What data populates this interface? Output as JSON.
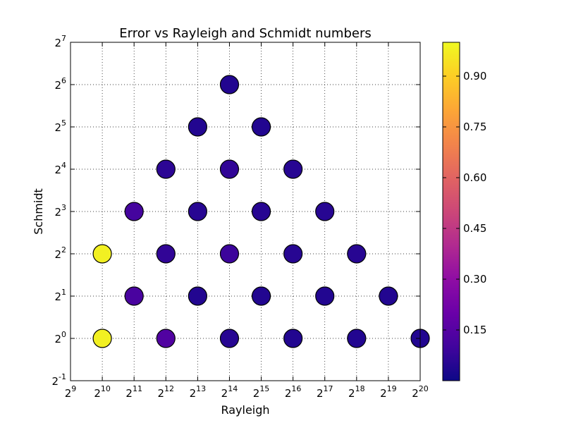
{
  "chart_data": {
    "type": "scatter",
    "title": "Error vs Rayleigh and Schmidt numbers",
    "xlabel": "Rayleigh",
    "ylabel": "Schmidt",
    "x_scale": "log2",
    "y_scale": "log2",
    "xlim": [
      512,
      1048576
    ],
    "ylim": [
      0.5,
      128
    ],
    "x_ticks": [
      "2^9",
      "2^10",
      "2^11",
      "2^12",
      "2^13",
      "2^14",
      "2^15",
      "2^16",
      "2^17",
      "2^18",
      "2^19",
      "2^20"
    ],
    "y_ticks": [
      "2^-1",
      "2^0",
      "2^1",
      "2^2",
      "2^3",
      "2^4",
      "2^5",
      "2^6",
      "2^7"
    ],
    "grid": true,
    "colormap": "plasma",
    "colorbar": {
      "range": [
        0.0,
        1.0
      ],
      "ticks": [
        "0.15",
        "0.30",
        "0.45",
        "0.60",
        "0.75",
        "0.90"
      ]
    },
    "points": [
      {
        "x": 1024,
        "y": 1,
        "error": 0.98
      },
      {
        "x": 1024,
        "y": 4,
        "error": 0.98
      },
      {
        "x": 2048,
        "y": 2,
        "error": 0.12
      },
      {
        "x": 2048,
        "y": 8,
        "error": 0.11
      },
      {
        "x": 4096,
        "y": 1,
        "error": 0.14
      },
      {
        "x": 4096,
        "y": 4,
        "error": 0.07
      },
      {
        "x": 4096,
        "y": 16,
        "error": 0.06
      },
      {
        "x": 8192,
        "y": 2,
        "error": 0.04
      },
      {
        "x": 8192,
        "y": 8,
        "error": 0.05
      },
      {
        "x": 8192,
        "y": 32,
        "error": 0.04
      },
      {
        "x": 16384,
        "y": 1,
        "error": 0.05
      },
      {
        "x": 16384,
        "y": 4,
        "error": 0.09
      },
      {
        "x": 16384,
        "y": 16,
        "error": 0.07
      },
      {
        "x": 16384,
        "y": 64,
        "error": 0.04
      },
      {
        "x": 32768,
        "y": 2,
        "error": 0.04
      },
      {
        "x": 32768,
        "y": 8,
        "error": 0.05
      },
      {
        "x": 32768,
        "y": 32,
        "error": 0.04
      },
      {
        "x": 65536,
        "y": 1,
        "error": 0.04
      },
      {
        "x": 65536,
        "y": 4,
        "error": 0.05
      },
      {
        "x": 65536,
        "y": 16,
        "error": 0.05
      },
      {
        "x": 131072,
        "y": 2,
        "error": 0.04
      },
      {
        "x": 131072,
        "y": 8,
        "error": 0.05
      },
      {
        "x": 262144,
        "y": 1,
        "error": 0.04
      },
      {
        "x": 262144,
        "y": 4,
        "error": 0.05
      },
      {
        "x": 524288,
        "y": 2,
        "error": 0.04
      },
      {
        "x": 1048576,
        "y": 1,
        "error": 0.04
      }
    ]
  }
}
